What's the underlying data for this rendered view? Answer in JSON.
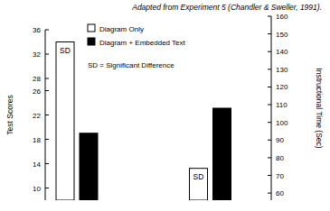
{
  "chart_data": {
    "type": "bar",
    "title": "Adapted from Experiment 5 (Chandler & Sweller, 1991).",
    "ylabel": "Test Scores",
    "y2label": "Instructional Time (Sec)",
    "categories": [
      null,
      null
    ],
    "series": [
      {
        "name": "Diagram Only",
        "color": "#ffffff",
        "values": [
          34,
          null
        ]
      },
      {
        "name": "Diagram + Embedded Text",
        "color": "#000000",
        "values": [
          19,
          null
        ]
      },
      {
        "name": "Diagram Only",
        "color": "#ffffff",
        "values": [
          null,
          74
        ],
        "axis": "y2"
      },
      {
        "name": "Diagram + Embedded Text",
        "color": "#000000",
        "values": [
          null,
          108
        ],
        "axis": "y2"
      }
    ],
    "ylim": [
      8,
      36
    ],
    "yticks": [
      10,
      14,
      18,
      22,
      26,
      28,
      32,
      36
    ],
    "y2lim": [
      56,
      160
    ],
    "y2ticks": [
      60,
      70,
      80,
      90,
      100,
      110,
      120,
      130,
      140,
      150,
      160
    ],
    "annotations": [
      {
        "text": "SD",
        "series": 0
      },
      {
        "text": "SD",
        "series": 2
      },
      {
        "text": "SD = Significant Difference"
      }
    ],
    "legend": "top-left",
    "grid": false
  }
}
